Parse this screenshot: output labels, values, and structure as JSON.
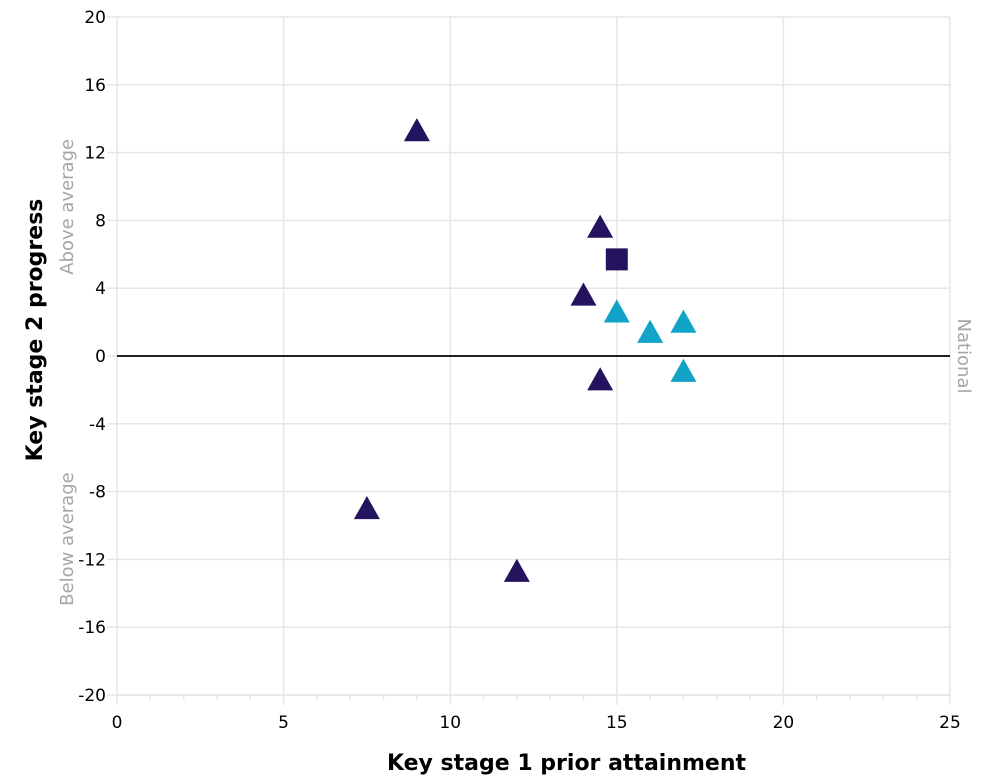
{
  "chart_data": {
    "type": "scatter",
    "xlabel": "Key stage 1 prior attainment",
    "ylabel": "Key stage 2 progress",
    "xlim": [
      0,
      25
    ],
    "ylim": [
      -20,
      20
    ],
    "x_ticks": [
      0,
      5,
      10,
      15,
      20,
      25
    ],
    "y_ticks": [
      -20,
      -16,
      -12,
      -8,
      -4,
      0,
      4,
      8,
      12,
      16,
      20
    ],
    "x_minor_step": 1,
    "grid": true,
    "reference_line": {
      "y": 0,
      "label": "National"
    },
    "band_labels": {
      "above": "Above average",
      "below": "Below average"
    },
    "colors": {
      "dark": "#24135f",
      "light": "#12a3c9",
      "grid": "#e6e6e6",
      "band_text": "#a6a6a6"
    },
    "points": [
      {
        "x": 9.0,
        "y": 13.3,
        "shape": "triangle",
        "color": "dark"
      },
      {
        "x": 14.5,
        "y": 7.6,
        "shape": "triangle",
        "color": "dark"
      },
      {
        "x": 15.0,
        "y": 5.7,
        "shape": "square",
        "color": "dark"
      },
      {
        "x": 14.0,
        "y": 3.6,
        "shape": "triangle",
        "color": "dark"
      },
      {
        "x": 14.5,
        "y": -1.4,
        "shape": "triangle",
        "color": "dark"
      },
      {
        "x": 7.5,
        "y": -9.0,
        "shape": "triangle",
        "color": "dark"
      },
      {
        "x": 12.0,
        "y": -12.7,
        "shape": "triangle",
        "color": "dark"
      },
      {
        "x": 15.0,
        "y": 2.6,
        "shape": "triangle",
        "color": "light"
      },
      {
        "x": 16.0,
        "y": 1.4,
        "shape": "triangle",
        "color": "light"
      },
      {
        "x": 17.0,
        "y": 2.0,
        "shape": "triangle",
        "color": "light"
      },
      {
        "x": 17.0,
        "y": -0.9,
        "shape": "triangle",
        "color": "light"
      }
    ]
  }
}
